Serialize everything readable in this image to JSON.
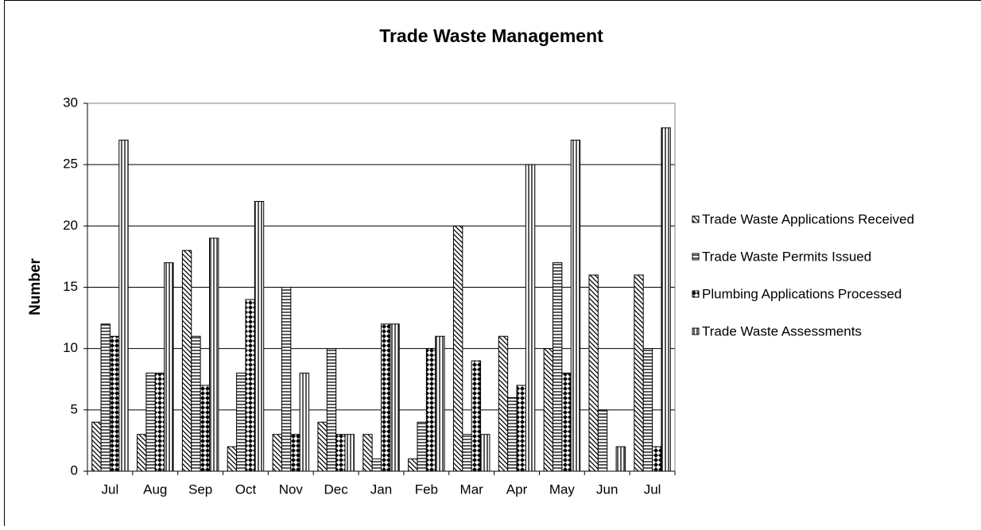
{
  "chart_data": {
    "type": "bar",
    "title": "Trade Waste Management",
    "ylabel": "Number",
    "categories": [
      "Jul",
      "Aug",
      "Sep",
      "Oct",
      "Nov",
      "Dec",
      "Jan",
      "Feb",
      "Mar",
      "Apr",
      "May",
      "Jun",
      "Jul"
    ],
    "series": [
      {
        "name": "Trade Waste Applications Received",
        "color": "#000000",
        "pattern": "diagonal",
        "values": [
          4,
          3,
          18,
          2,
          3,
          4,
          3,
          1,
          20,
          11,
          10,
          16,
          16
        ]
      },
      {
        "name": "Trade Waste Permits Issued",
        "color": "#000000",
        "pattern": "horizontal",
        "values": [
          12,
          8,
          11,
          8,
          15,
          10,
          1,
          4,
          3,
          6,
          17,
          5,
          10
        ]
      },
      {
        "name": "Plumbing Applications Processed",
        "color": "#000000",
        "pattern": "diamond",
        "values": [
          11,
          8,
          7,
          14,
          3,
          3,
          12,
          10,
          9,
          7,
          8,
          0,
          2
        ]
      },
      {
        "name": "Trade Waste Assessments",
        "color": "#000000",
        "pattern": "vertical",
        "values": [
          27,
          17,
          19,
          22,
          8,
          3,
          12,
          11,
          3,
          25,
          27,
          2,
          28
        ]
      }
    ],
    "ylim": [
      0,
      30
    ],
    "yticks": [
      0,
      5,
      10,
      15,
      20,
      25,
      30
    ],
    "grid": true,
    "legend": "right"
  }
}
